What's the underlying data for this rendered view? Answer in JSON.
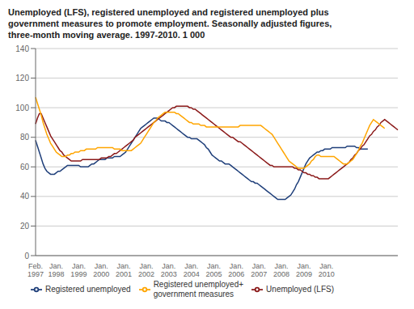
{
  "chart_data": {
    "type": "line",
    "title": "Unemployed (LFS), registered unemployed and registered unemployed plus\ngovernment measures to promote employment. Seasonally adjusted figures,\nthree-month moving average. 1997-2010. 1 000",
    "categories": [
      "Feb.\n1997",
      null,
      null,
      null,
      null,
      null,
      null,
      null,
      null,
      null,
      null,
      "Jan.\n1998",
      null,
      null,
      null,
      null,
      null,
      null,
      null,
      null,
      null,
      null,
      null,
      "Jan.\n1999",
      null,
      null,
      null,
      null,
      null,
      null,
      null,
      null,
      null,
      null,
      null,
      "Jan.\n2000",
      null,
      null,
      null,
      null,
      null,
      null,
      null,
      null,
      null,
      null,
      null,
      "Jan.\n2001",
      null,
      null,
      null,
      null,
      null,
      null,
      null,
      null,
      null,
      null,
      null,
      "Jan.\n2002",
      null,
      null,
      null,
      null,
      null,
      null,
      null,
      null,
      null,
      null,
      null,
      "Jan.\n2003",
      null,
      null,
      null,
      null,
      null,
      null,
      null,
      null,
      null,
      null,
      null,
      "Jan.\n2004",
      null,
      null,
      null,
      null,
      null,
      null,
      null,
      null,
      null,
      null,
      null,
      "Jan.\n2005",
      null,
      null,
      null,
      null,
      null,
      null,
      null,
      null,
      null,
      null,
      null,
      "Jan.\n2006",
      null,
      null,
      null,
      null,
      null,
      null,
      null,
      null,
      null,
      null,
      null,
      "Jan.\n2007",
      null,
      null,
      null,
      null,
      null,
      null,
      null,
      null,
      null,
      null,
      null,
      "Jan.\n2008",
      null,
      null,
      null,
      null,
      null,
      null,
      null,
      null,
      null,
      null,
      null,
      "Jan.\n2009",
      null,
      null,
      null,
      null,
      null,
      null,
      null,
      null,
      null,
      null,
      null,
      "Jan.\n2010",
      null,
      null,
      null,
      null,
      null,
      null,
      null,
      null,
      null,
      null,
      null,
      null,
      null,
      null,
      null,
      null,
      null,
      null,
      null,
      null,
      null,
      null,
      null,
      null,
      null,
      null,
      null,
      null,
      null,
      null,
      null,
      null,
      null,
      null,
      null,
      null,
      null,
      null
    ],
    "series": [
      {
        "name": "Registered unemployed",
        "color": "#1f3f7a",
        "values": [
          78,
          74,
          70,
          66,
          62,
          59,
          57,
          56,
          55,
          55,
          55,
          56,
          57,
          57,
          58,
          59,
          60,
          61,
          61,
          61,
          61,
          61,
          61,
          61,
          60,
          60,
          60,
          60,
          60,
          61,
          62,
          62,
          63,
          64,
          65,
          65,
          65,
          65,
          66,
          66,
          66,
          66,
          67,
          67,
          67,
          67,
          68,
          69,
          70,
          72,
          74,
          76,
          78,
          80,
          82,
          84,
          86,
          87,
          88,
          89,
          90,
          91,
          92,
          93,
          93,
          93,
          92,
          91,
          91,
          91,
          90,
          90,
          89,
          88,
          87,
          86,
          85,
          84,
          83,
          82,
          81,
          80,
          80,
          79,
          79,
          79,
          79,
          78,
          77,
          76,
          75,
          73,
          72,
          70,
          68,
          67,
          66,
          65,
          64,
          64,
          63,
          62,
          62,
          62,
          61,
          60,
          59,
          58,
          57,
          56,
          55,
          54,
          53,
          52,
          51,
          50,
          50,
          49,
          49,
          48,
          47,
          46,
          45,
          44,
          43,
          42,
          41,
          40,
          39,
          38,
          38,
          38,
          38,
          38,
          39,
          40,
          41,
          43,
          45,
          48,
          50,
          53,
          56,
          59,
          62,
          64,
          66,
          67,
          68,
          69,
          70,
          70,
          71,
          71,
          72,
          72,
          72,
          72,
          73,
          73,
          73,
          73,
          73,
          73,
          73,
          73,
          74,
          74,
          74,
          74,
          74,
          73,
          73,
          72,
          72,
          72,
          72,
          72,
          null,
          null,
          null,
          null,
          null,
          null,
          null,
          null,
          null,
          null,
          null,
          null,
          null,
          null,
          null,
          null
        ]
      },
      {
        "name": "Unemployed (LFS)",
        "color": "#8b1a1a",
        "values": [
          89,
          93,
          96,
          96,
          93,
          90,
          87,
          84,
          81,
          79,
          77,
          75,
          73,
          71,
          70,
          68,
          67,
          66,
          65,
          64,
          64,
          64,
          64,
          64,
          64,
          65,
          65,
          65,
          65,
          65,
          65,
          65,
          65,
          65,
          65,
          66,
          66,
          66,
          66,
          67,
          67,
          68,
          69,
          69,
          70,
          71,
          72,
          73,
          74,
          75,
          76,
          77,
          78,
          80,
          81,
          82,
          83,
          84,
          85,
          86,
          87,
          88,
          89,
          90,
          91,
          92,
          93,
          94,
          95,
          96,
          97,
          98,
          99,
          100,
          100,
          101,
          101,
          101,
          101,
          101,
          101,
          101,
          100,
          100,
          99,
          99,
          98,
          97,
          96,
          95,
          94,
          93,
          92,
          91,
          90,
          89,
          88,
          87,
          86,
          85,
          84,
          83,
          82,
          81,
          80,
          80,
          79,
          78,
          77,
          77,
          76,
          75,
          74,
          73,
          72,
          71,
          70,
          69,
          68,
          67,
          66,
          65,
          64,
          63,
          62,
          61,
          61,
          60,
          60,
          60,
          60,
          60,
          60,
          60,
          60,
          60,
          60,
          60,
          59,
          59,
          58,
          58,
          57,
          56,
          56,
          55,
          55,
          54,
          54,
          53,
          53,
          52,
          52,
          52,
          52,
          52,
          52,
          53,
          54,
          55,
          56,
          57,
          58,
          59,
          60,
          61,
          62,
          63,
          65,
          66,
          68,
          69,
          71,
          72,
          74,
          75,
          77,
          79,
          81,
          82,
          84,
          85,
          87,
          88,
          90,
          91,
          92,
          91,
          90,
          89,
          88,
          87,
          86,
          85
        ]
      },
      {
        "name": "Registered unemployed+\ngovernment measures",
        "color": "#ffa500",
        "values": [
          107,
          103,
          99,
          95,
          90,
          86,
          82,
          79,
          76,
          74,
          72,
          70,
          69,
          68,
          67,
          67,
          67,
          68,
          68,
          69,
          69,
          70,
          70,
          70,
          71,
          71,
          71,
          72,
          72,
          72,
          72,
          72,
          72,
          73,
          73,
          73,
          73,
          73,
          73,
          73,
          73,
          73,
          72,
          72,
          72,
          72,
          71,
          71,
          71,
          71,
          71,
          71,
          72,
          73,
          74,
          75,
          76,
          78,
          80,
          82,
          84,
          86,
          88,
          90,
          91,
          93,
          94,
          95,
          96,
          97,
          97,
          97,
          97,
          97,
          97,
          96,
          96,
          95,
          94,
          93,
          92,
          91,
          90,
          90,
          89,
          89,
          89,
          89,
          88,
          88,
          88,
          87,
          87,
          87,
          87,
          87,
          87,
          87,
          87,
          87,
          87,
          87,
          87,
          87,
          87,
          87,
          87,
          87,
          87,
          88,
          88,
          88,
          88,
          88,
          88,
          88,
          88,
          88,
          88,
          88,
          88,
          87,
          86,
          85,
          84,
          83,
          82,
          80,
          78,
          76,
          74,
          72,
          70,
          68,
          66,
          64,
          63,
          62,
          61,
          60,
          59,
          59,
          59,
          59,
          60,
          61,
          62,
          64,
          65,
          67,
          68,
          68,
          67,
          67,
          67,
          67,
          67,
          67,
          67,
          67,
          66,
          65,
          64,
          63,
          62,
          62,
          62,
          63,
          64,
          65,
          67,
          69,
          71,
          74,
          76,
          79,
          82,
          85,
          88,
          90,
          92,
          91,
          90,
          89,
          88,
          87,
          86,
          null,
          null,
          null,
          null,
          null,
          null,
          null
        ]
      }
    ],
    "ylim": [
      0,
      140
    ],
    "yticks": [
      0,
      20,
      40,
      60,
      80,
      100,
      120,
      140
    ],
    "grid": true,
    "legend": "bottom"
  }
}
